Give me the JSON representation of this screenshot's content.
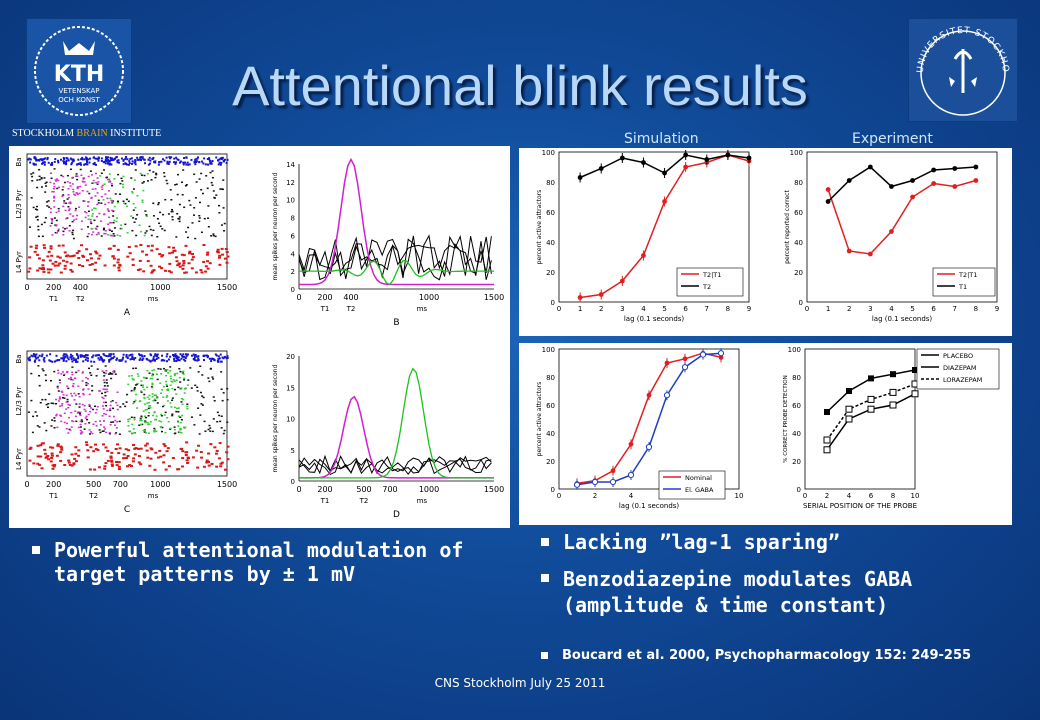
{
  "slide": {
    "title": "Attentional blink results",
    "institute_prefix": "STOCKHOLM ",
    "institute_brain": "BRAIN",
    "institute_suffix": " INSTITUTE",
    "kth_logo": {
      "text": "KTH",
      "subtext1": "VETENSKAP",
      "subtext2": "OCH KONST"
    },
    "su_logo": {
      "text": "UNIVERSITET STOCKHOLMS"
    },
    "footer": "CNS Stockholm July 25 2011"
  },
  "left_figure": {
    "panels": [
      {
        "label": "A",
        "xticks": [
          "0",
          "200",
          "400",
          "1000",
          "1500"
        ],
        "events": [
          "T1",
          "T2"
        ],
        "xunit": "ms",
        "layers": [
          "Ba",
          "L2/3 Pyr",
          "L4 Pyr"
        ]
      },
      {
        "label": "B",
        "xticks": [
          "0",
          "200",
          "400",
          "1000",
          "1500"
        ],
        "events": [
          "T1",
          "T2"
        ],
        "xunit": "ms",
        "ylabel": "mean spikes per neuron per second",
        "yticks": [
          "0",
          "2",
          "4",
          "6",
          "8",
          "10",
          "12",
          "14"
        ]
      },
      {
        "label": "C",
        "xticks": [
          "0",
          "200",
          "500",
          "700",
          "1000",
          "1500"
        ],
        "events": [
          "T1",
          "T2"
        ],
        "xunit": "ms",
        "layers": [
          "Ba",
          "L2/3 Pyr",
          "L4 Pyr"
        ]
      },
      {
        "label": "D",
        "xticks": [
          "0",
          "200",
          "500",
          "700",
          "1000",
          "1500"
        ],
        "events": [
          "T1",
          "T2"
        ],
        "xunit": "ms",
        "ylabel": "mean spikes per neuron per second",
        "yticks": [
          "0",
          "5",
          "10",
          "15",
          "20"
        ]
      }
    ]
  },
  "top_right": {
    "headers": [
      "Simulation",
      "Experiment"
    ],
    "sim": {
      "ylabel": "percent active attractors",
      "xlabel": "lag (0.1 seconds)",
      "legend": [
        "T2|T1",
        "T2"
      ]
    },
    "exp": {
      "ylabel": "percent reported correct",
      "xlabel": "lag (0.1 seconds)",
      "legend": [
        "T2|T1",
        "T1"
      ]
    }
  },
  "bottom_right": {
    "sim": {
      "ylabel": "percent active attractors",
      "xlabel": "lag (0.1 seconds)",
      "legend": [
        "Nominal",
        "El. GABA"
      ]
    },
    "exp": {
      "ylabel": "% CORRECT PROBE DETECTION",
      "xlabel": "SERIAL POSITION OF THE PROBE",
      "legend": [
        "PLACEBO",
        "DIAZEPAM",
        "LORAZEPAM"
      ]
    }
  },
  "bullets": {
    "left": [
      "Powerful attentional modulation of target patterns by ± 1 mV"
    ],
    "right": [
      "Lacking ”lag-1 sparing”",
      "Benzodiazepine modulates GABA (amplitude & time constant)"
    ],
    "reference": "Boucard et al. 2000, Psychopharmacology 152: 249-255"
  },
  "chart_data": [
    {
      "type": "line",
      "title": "Simulation",
      "xlabel": "lag (0.1 seconds)",
      "ylabel": "percent active attractors",
      "x": [
        1,
        2,
        3,
        4,
        5,
        6,
        7,
        8,
        9
      ],
      "xlim": [
        0,
        9
      ],
      "ylim": [
        0,
        100
      ],
      "series": [
        {
          "name": "T2|T1",
          "color": "#e02020",
          "values": [
            3,
            5,
            14,
            31,
            67,
            90,
            93,
            98,
            94
          ]
        },
        {
          "name": "T2",
          "color": "#000000",
          "values": [
            83,
            89,
            96,
            93,
            86,
            98,
            95,
            98,
            96
          ]
        }
      ]
    },
    {
      "type": "line",
      "title": "Experiment",
      "xlabel": "lag (0.1 seconds)",
      "ylabel": "percent reported correct",
      "x": [
        1,
        2,
        3,
        4,
        5,
        6,
        7,
        8
      ],
      "xlim": [
        0,
        9
      ],
      "ylim": [
        0,
        100
      ],
      "series": [
        {
          "name": "T2|T1",
          "color": "#e02020",
          "values": [
            75,
            34,
            32,
            47,
            70,
            79,
            77,
            81
          ]
        },
        {
          "name": "T1",
          "color": "#000000",
          "values": [
            67,
            81,
            90,
            77,
            81,
            88,
            89,
            90
          ]
        }
      ]
    },
    {
      "type": "line",
      "xlabel": "lag (0.1 seconds)",
      "ylabel": "percent active attractors",
      "x": [
        1,
        2,
        3,
        4,
        5,
        6,
        7,
        8,
        9
      ],
      "xlim": [
        0,
        10
      ],
      "ylim": [
        0,
        100
      ],
      "series": [
        {
          "name": "Nominal",
          "color": "#e02020",
          "values": [
            4,
            6,
            13,
            32,
            67,
            90,
            93,
            97,
            94
          ]
        },
        {
          "name": "El. GABA",
          "color": "#2040c0",
          "values": [
            3,
            5,
            5,
            10,
            30,
            67,
            87,
            96,
            97
          ]
        }
      ]
    },
    {
      "type": "line",
      "xlabel": "SERIAL POSITION OF THE PROBE",
      "ylabel": "% CORRECT PROBE DETECTION",
      "x": [
        2,
        4,
        6,
        8,
        10
      ],
      "xlim": [
        0,
        10
      ],
      "ylim": [
        0,
        100
      ],
      "series": [
        {
          "name": "PLACEBO",
          "color": "#000000",
          "values": [
            55,
            70,
            79,
            82,
            85
          ]
        },
        {
          "name": "DIAZEPAM",
          "color": "#000000",
          "values": [
            28,
            50,
            57,
            60,
            68
          ]
        },
        {
          "name": "LORAZEPAM",
          "color": "#000000",
          "values": [
            35,
            57,
            64,
            69,
            75
          ]
        }
      ]
    }
  ]
}
